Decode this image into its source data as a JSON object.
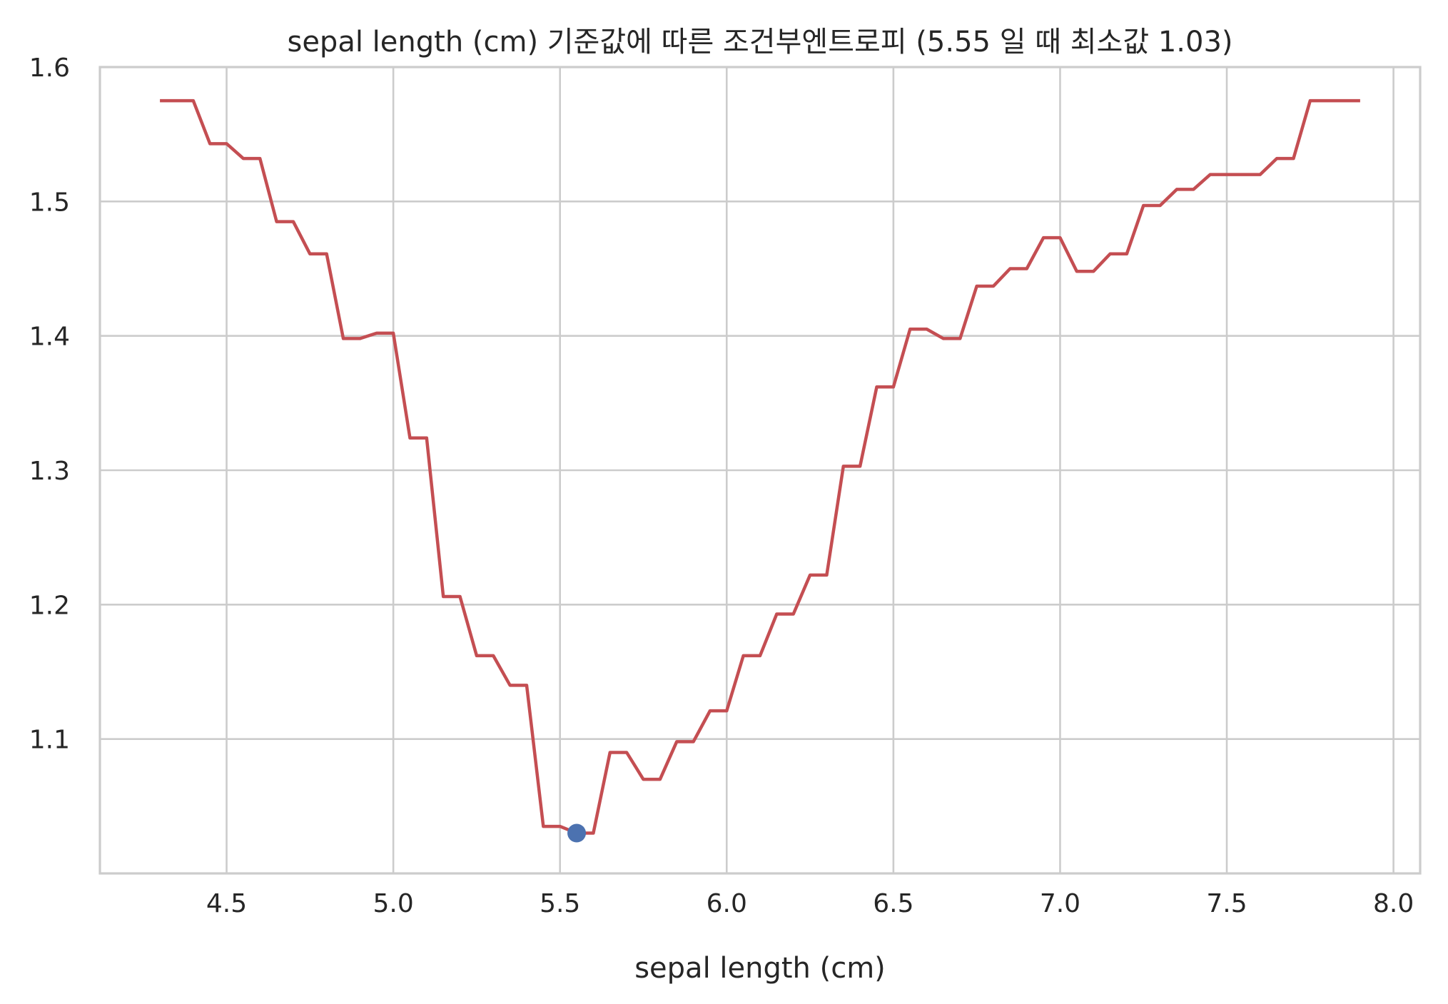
{
  "chart_data": {
    "type": "line",
    "title": "sepal length (cm) 기준값에 따른 조건부엔트로피 (5.55 일 때 최소값 1.03)",
    "xlabel": "sepal length (cm)",
    "ylabel": "",
    "xlim": [
      4.12,
      8.08
    ],
    "ylim": [
      1.0,
      1.6
    ],
    "xticks": [
      4.5,
      5.0,
      5.5,
      6.0,
      6.5,
      7.0,
      7.5,
      8.0
    ],
    "xtick_labels": [
      "4.5",
      "5.0",
      "5.5",
      "6.0",
      "6.5",
      "7.0",
      "7.5",
      "8.0"
    ],
    "yticks": [
      1.1,
      1.2,
      1.3,
      1.4,
      1.5,
      1.6
    ],
    "ytick_labels": [
      "1.1",
      "1.2",
      "1.3",
      "1.4",
      "1.5",
      "1.6"
    ],
    "grid": true,
    "series": [
      {
        "color": "#c44e52",
        "x": [
          4.3,
          4.35,
          4.4,
          4.45,
          4.5,
          4.55,
          4.6,
          4.65,
          4.7,
          4.75,
          4.8,
          4.85,
          4.9,
          4.95,
          5.0,
          5.05,
          5.1,
          5.15,
          5.2,
          5.25,
          5.3,
          5.35,
          5.4,
          5.45,
          5.5,
          5.55,
          5.6,
          5.65,
          5.7,
          5.75,
          5.8,
          5.85,
          5.9,
          5.95,
          6.0,
          6.05,
          6.1,
          6.15,
          6.2,
          6.25,
          6.3,
          6.35,
          6.4,
          6.45,
          6.5,
          6.55,
          6.6,
          6.65,
          6.7,
          6.75,
          6.8,
          6.85,
          6.9,
          6.95,
          7.0,
          7.05,
          7.1,
          7.15,
          7.2,
          7.25,
          7.3,
          7.35,
          7.4,
          7.45,
          7.5,
          7.55,
          7.6,
          7.65,
          7.7,
          7.75,
          7.8,
          7.85,
          7.9
        ],
        "y": [
          1.575,
          1.575,
          1.575,
          1.543,
          1.543,
          1.532,
          1.532,
          1.485,
          1.485,
          1.461,
          1.461,
          1.398,
          1.398,
          1.402,
          1.402,
          1.324,
          1.324,
          1.206,
          1.206,
          1.162,
          1.162,
          1.14,
          1.14,
          1.035,
          1.035,
          1.03,
          1.03,
          1.09,
          1.09,
          1.07,
          1.07,
          1.098,
          1.098,
          1.121,
          1.121,
          1.162,
          1.162,
          1.193,
          1.193,
          1.222,
          1.222,
          1.303,
          1.303,
          1.362,
          1.362,
          1.405,
          1.405,
          1.398,
          1.398,
          1.437,
          1.437,
          1.45,
          1.45,
          1.473,
          1.473,
          1.448,
          1.448,
          1.461,
          1.461,
          1.497,
          1.497,
          1.509,
          1.509,
          1.52,
          1.52,
          1.52,
          1.52,
          1.532,
          1.532,
          1.575,
          1.575,
          1.575,
          1.575
        ]
      }
    ],
    "marker": {
      "x": 5.55,
      "y": 1.03,
      "color": "#4c72b0"
    }
  }
}
